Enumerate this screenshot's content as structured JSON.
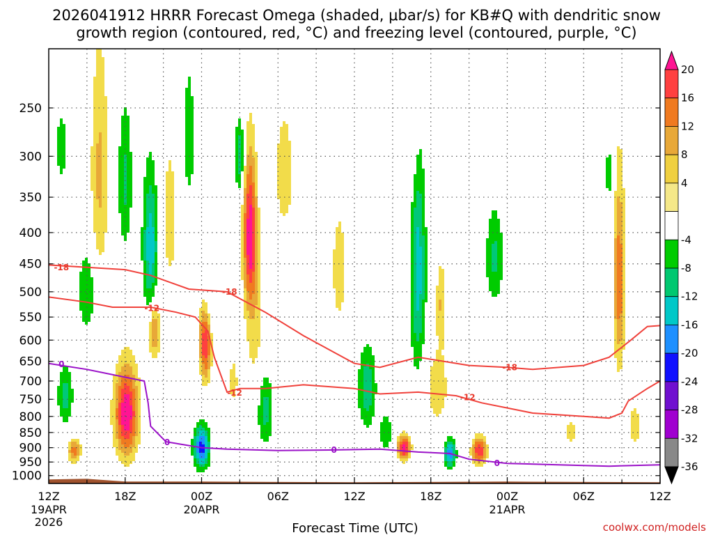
{
  "chart_data": {
    "type": "contour",
    "title_line1": "2026041912 HRRR Forecast Omega (shaded, μbar/s) for KB#Q with dendritic snow",
    "title_line2": "growth region (contoured, red, °C) and freezing level (contoured, purple, °C)",
    "xlabel": "Forecast Time (UTC)",
    "credit": "coolwx.com/models",
    "x_ticks": [
      {
        "hour": 0,
        "label": "12Z",
        "sub1": "19APR",
        "sub2": "2026"
      },
      {
        "hour": 6,
        "label": "18Z",
        "sub1": "",
        "sub2": ""
      },
      {
        "hour": 12,
        "label": "00Z",
        "sub1": "20APR",
        "sub2": ""
      },
      {
        "hour": 18,
        "label": "06Z",
        "sub1": "",
        "sub2": ""
      },
      {
        "hour": 24,
        "label": "12Z",
        "sub1": "",
        "sub2": ""
      },
      {
        "hour": 30,
        "label": "18Z",
        "sub1": "",
        "sub2": ""
      },
      {
        "hour": 36,
        "label": "00Z",
        "sub1": "21APR",
        "sub2": ""
      },
      {
        "hour": 42,
        "label": "06Z",
        "sub1": "",
        "sub2": ""
      },
      {
        "hour": 48,
        "label": "12Z",
        "sub1": "",
        "sub2": ""
      }
    ],
    "y_ticks": [
      250,
      300,
      350,
      400,
      450,
      500,
      550,
      600,
      650,
      700,
      750,
      800,
      850,
      900,
      950,
      1000
    ],
    "y_label_texts": [
      "250",
      "300",
      "350",
      "400",
      "450",
      "500",
      "550",
      "600",
      "650",
      "700",
      "750",
      "800",
      "850",
      "900",
      "950",
      "1000"
    ],
    "xlim_hours": [
      0,
      48
    ],
    "ylim_hpa": [
      200,
      1030
    ],
    "colorbar": {
      "labels": [
        "20",
        "16",
        "12",
        "8",
        "4",
        "-4",
        "-8",
        "-12",
        "-16",
        "-20",
        "-24",
        "-28",
        "-32",
        "-36"
      ],
      "colors": [
        "#ff1493",
        "#ff4040",
        "#f07a20",
        "#e8a838",
        "#f0d040",
        "#f5e888",
        "#ffffff",
        "#00cc00",
        "#00c870",
        "#00c8c8",
        "#1e90ff",
        "#1010ff",
        "#7010d0",
        "#a000d0",
        "#888888",
        "#000000"
      ]
    },
    "omega_blobs": [
      {
        "t": 1.0,
        "p": 290,
        "wt": 0.45,
        "wp": 40,
        "v": -7
      },
      {
        "t": 4.0,
        "p": 320,
        "wt": 0.7,
        "wp": 140,
        "v": 9
      },
      {
        "t": 6.0,
        "p": 330,
        "wt": 0.55,
        "wp": 90,
        "v": -9
      },
      {
        "t": 8.0,
        "p": 420,
        "wt": 0.6,
        "wp": 110,
        "v": -15
      },
      {
        "t": 9.5,
        "p": 380,
        "wt": 0.9,
        "wp": 160,
        "v": 5
      },
      {
        "t": 11.0,
        "p": 280,
        "wt": 0.5,
        "wp": 80,
        "v": -7
      },
      {
        "t": 12.5,
        "p": 530,
        "wt": 0.5,
        "wp": 60,
        "v": -6
      },
      {
        "t": 3.0,
        "p": 500,
        "wt": 0.7,
        "wp": 80,
        "v": -8
      },
      {
        "t": 6.1,
        "p": 790,
        "wt": 0.9,
        "wp": 130,
        "v": 24
      },
      {
        "t": 8.3,
        "p": 580,
        "wt": 0.45,
        "wp": 60,
        "v": 13
      },
      {
        "t": 1.3,
        "p": 740,
        "wt": 0.6,
        "wp": 80,
        "v": -10
      },
      {
        "t": 2.0,
        "p": 910,
        "wt": 0.5,
        "wp": 40,
        "v": 14
      },
      {
        "t": 12.0,
        "p": 900,
        "wt": 0.6,
        "wp": 70,
        "v": -22
      },
      {
        "t": 12.3,
        "p": 600,
        "wt": 0.45,
        "wp": 90,
        "v": 21
      },
      {
        "t": 15.8,
        "p": 400,
        "wt": 0.5,
        "wp": 110,
        "v": 22
      },
      {
        "t": 16.2,
        "p": 560,
        "wt": 0.8,
        "wp": 160,
        "v": 6
      },
      {
        "t": 18.5,
        "p": 320,
        "wt": 1.2,
        "wp": 120,
        "v": 5
      },
      {
        "t": 15.0,
        "p": 300,
        "wt": 0.35,
        "wp": 40,
        "v": -12
      },
      {
        "t": 17.0,
        "p": 780,
        "wt": 0.6,
        "wp": 110,
        "v": -10
      },
      {
        "t": 14.5,
        "p": 700,
        "wt": 0.35,
        "wp": 60,
        "v": 7
      },
      {
        "t": 22.8,
        "p": 460,
        "wt": 0.9,
        "wp": 160,
        "v": 5
      },
      {
        "t": 25.0,
        "p": 720,
        "wt": 0.7,
        "wp": 110,
        "v": -11
      },
      {
        "t": 26.5,
        "p": 850,
        "wt": 0.5,
        "wp": 60,
        "v": -8
      },
      {
        "t": 28.5,
        "p": 280,
        "wt": 0.8,
        "wp": 80,
        "v": 5
      },
      {
        "t": 29.0,
        "p": 460,
        "wt": 0.6,
        "wp": 200,
        "v": -14
      },
      {
        "t": 27.9,
        "p": 900,
        "wt": 0.5,
        "wp": 40,
        "v": 22
      },
      {
        "t": 30.5,
        "p": 720,
        "wt": 1.1,
        "wp": 120,
        "v": 6
      },
      {
        "t": 31.5,
        "p": 920,
        "wt": 0.45,
        "wp": 50,
        "v": -18
      },
      {
        "t": 33.8,
        "p": 910,
        "wt": 0.55,
        "wp": 45,
        "v": 20
      },
      {
        "t": 35.0,
        "p": 440,
        "wt": 0.7,
        "wp": 80,
        "v": -9
      },
      {
        "t": 30.8,
        "p": 520,
        "wt": 0.4,
        "wp": 80,
        "v": 8
      },
      {
        "t": 41.0,
        "p": 850,
        "wt": 0.9,
        "wp": 60,
        "v": 5
      },
      {
        "t": 44.8,
        "p": 480,
        "wt": 0.45,
        "wp": 170,
        "v": 15
      },
      {
        "t": 46.0,
        "p": 830,
        "wt": 0.6,
        "wp": 80,
        "v": 6
      },
      {
        "t": 44.0,
        "p": 320,
        "wt": 0.4,
        "wp": 40,
        "v": -6
      }
    ],
    "dgz_contours": [
      {
        "label": "-18",
        "points": [
          [
            0,
            452
          ],
          [
            6,
            460
          ],
          [
            8,
            470
          ],
          [
            11,
            495
          ],
          [
            14,
            500
          ],
          [
            17,
            540
          ],
          [
            20,
            590
          ],
          [
            24,
            655
          ],
          [
            26,
            665
          ],
          [
            29,
            640
          ],
          [
            33,
            660
          ],
          [
            36,
            665
          ],
          [
            38,
            670
          ],
          [
            42,
            660
          ],
          [
            44,
            640
          ],
          [
            45.7,
            600
          ],
          [
            47,
            570
          ],
          [
            48,
            568
          ]
        ],
        "label_pos": [
          [
            1.0,
            456
          ],
          [
            14.2,
            500
          ],
          [
            36.2,
            665
          ]
        ]
      },
      {
        "label": "-12",
        "points": [
          [
            0,
            510
          ],
          [
            3,
            520
          ],
          [
            5,
            530
          ],
          [
            8,
            530
          ],
          [
            10,
            540
          ],
          [
            11.5,
            550
          ],
          [
            12.5,
            580
          ],
          [
            13,
            640
          ],
          [
            14,
            730
          ],
          [
            15,
            720
          ],
          [
            17,
            720
          ],
          [
            20,
            710
          ],
          [
            24,
            720
          ],
          [
            26,
            735
          ],
          [
            29,
            730
          ],
          [
            32,
            740
          ],
          [
            34,
            760
          ],
          [
            38,
            790
          ],
          [
            42,
            800
          ],
          [
            44,
            805
          ],
          [
            45,
            790
          ],
          [
            45.5,
            755
          ],
          [
            47,
            720
          ],
          [
            48,
            700
          ]
        ],
        "label_pos": [
          [
            8.1,
            532
          ],
          [
            14.6,
            732
          ],
          [
            32.9,
            745
          ]
        ]
      }
    ],
    "freezing_contour": {
      "label": "0",
      "points": [
        [
          0,
          655
        ],
        [
          3,
          670
        ],
        [
          6,
          690
        ],
        [
          7.5,
          700
        ],
        [
          7.8,
          760
        ],
        [
          8,
          830
        ],
        [
          9.2,
          880
        ],
        [
          12,
          900
        ],
        [
          14,
          905
        ],
        [
          18,
          910
        ],
        [
          22,
          908
        ],
        [
          26,
          905
        ],
        [
          29,
          915
        ],
        [
          31.5,
          920
        ],
        [
          33,
          940
        ],
        [
          36,
          955
        ],
        [
          40,
          960
        ],
        [
          44,
          965
        ],
        [
          48,
          960
        ]
      ],
      "label_pos": [
        [
          1.0,
          657
        ],
        [
          9.3,
          882
        ],
        [
          22.4,
          908
        ],
        [
          35.2,
          955
        ]
      ]
    },
    "terrain_top_hpa": 1020
  }
}
